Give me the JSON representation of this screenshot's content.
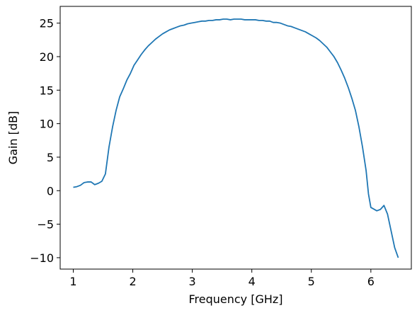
{
  "chart_data": {
    "type": "line",
    "title": "",
    "xlabel": "Frequency [GHz]",
    "ylabel": "Gain [dB]",
    "xlim": [
      0.78,
      6.68
    ],
    "ylim": [
      -11.7,
      27.5
    ],
    "xticks": [
      1,
      2,
      3,
      4,
      5,
      6
    ],
    "yticks": [
      -10,
      -5,
      0,
      5,
      10,
      15,
      20,
      25
    ],
    "xtick_labels": [
      "1",
      "2",
      "3",
      "4",
      "5",
      "6"
    ],
    "ytick_labels": [
      "−10",
      "−5",
      "0",
      "5",
      "10",
      "15",
      "20",
      "25"
    ],
    "grid": false,
    "legend": null,
    "series": [
      {
        "color": "#1f77b4",
        "x": [
          1.0,
          1.06,
          1.12,
          1.18,
          1.24,
          1.3,
          1.36,
          1.42,
          1.48,
          1.54,
          1.6,
          1.66,
          1.72,
          1.78,
          1.84,
          1.9,
          1.96,
          2.02,
          2.08,
          2.14,
          2.2,
          2.26,
          2.32,
          2.38,
          2.44,
          2.5,
          2.56,
          2.62,
          2.68,
          2.74,
          2.8,
          2.86,
          2.92,
          2.98,
          3.04,
          3.1,
          3.16,
          3.22,
          3.28,
          3.34,
          3.4,
          3.46,
          3.52,
          3.58,
          3.64,
          3.7,
          3.76,
          3.82,
          3.88,
          3.94,
          4.0,
          4.06,
          4.12,
          4.18,
          4.24,
          4.3,
          4.36,
          4.42,
          4.48,
          4.54,
          4.6,
          4.66,
          4.72,
          4.78,
          4.84,
          4.9,
          4.96,
          5.02,
          5.08,
          5.14,
          5.2,
          5.26,
          5.32,
          5.38,
          5.44,
          5.5,
          5.56,
          5.62,
          5.68,
          5.74,
          5.8,
          5.86,
          5.92,
          5.96,
          6.0,
          6.04,
          6.1,
          6.16,
          6.22,
          6.28,
          6.34,
          6.4,
          6.46
        ],
        "y": [
          0.5,
          0.6,
          0.8,
          1.2,
          1.3,
          1.3,
          0.9,
          1.1,
          1.4,
          2.5,
          6.5,
          9.5,
          12.0,
          14.0,
          15.2,
          16.5,
          17.5,
          18.7,
          19.5,
          20.3,
          21.0,
          21.6,
          22.1,
          22.6,
          23.0,
          23.4,
          23.7,
          24.0,
          24.2,
          24.4,
          24.6,
          24.7,
          24.9,
          25.0,
          25.1,
          25.2,
          25.3,
          25.3,
          25.4,
          25.4,
          25.5,
          25.5,
          25.6,
          25.6,
          25.5,
          25.6,
          25.6,
          25.6,
          25.5,
          25.5,
          25.5,
          25.5,
          25.4,
          25.4,
          25.3,
          25.3,
          25.1,
          25.1,
          25.0,
          24.8,
          24.6,
          24.5,
          24.3,
          24.1,
          23.9,
          23.7,
          23.4,
          23.1,
          22.8,
          22.4,
          21.9,
          21.4,
          20.7,
          20.0,
          19.1,
          18.0,
          16.8,
          15.4,
          13.8,
          12.0,
          9.5,
          6.5,
          3.0,
          -0.5,
          -2.5,
          -2.7,
          -3.0,
          -2.8,
          -2.2,
          -3.5,
          -6.0,
          -8.5,
          -10.0
        ]
      }
    ]
  }
}
